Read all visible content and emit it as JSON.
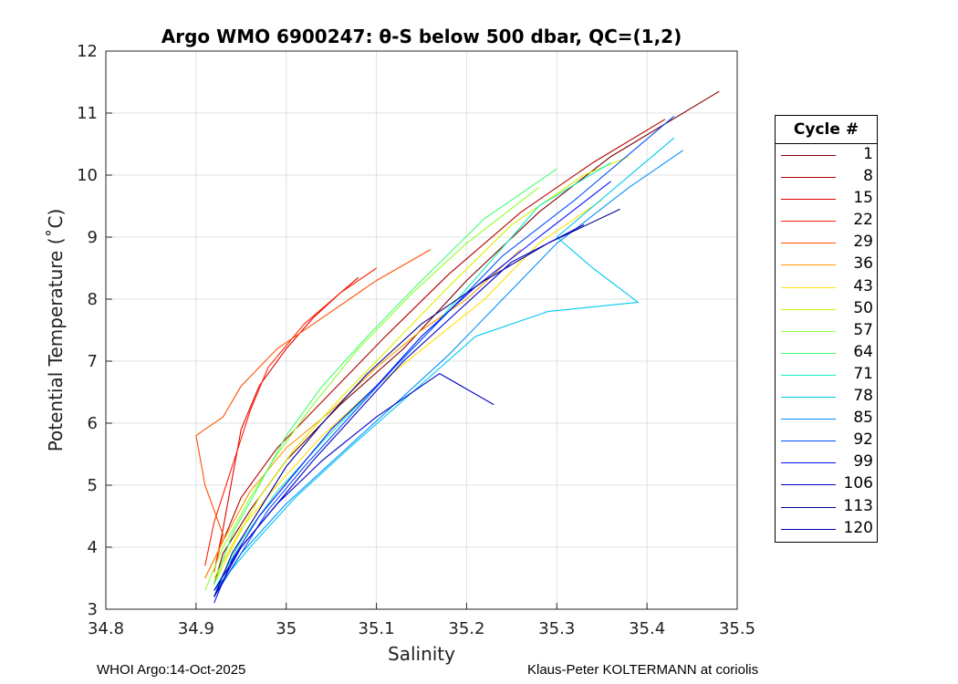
{
  "chart_data": {
    "type": "line",
    "title": "Argo WMO 6900247: θ-S below 500 dbar,  QC=(1,2)",
    "xlabel": "Salinity",
    "ylabel": "Potential Temperature (˚C)",
    "xlim": [
      34.8,
      35.5
    ],
    "ylim": [
      3,
      12
    ],
    "xticks": [
      34.8,
      34.9,
      35.0,
      35.1,
      35.2,
      35.3,
      35.4,
      35.5
    ],
    "xtick_labels": [
      "34.8",
      "34.9",
      "35",
      "35.1",
      "35.2",
      "35.3",
      "35.4",
      "35.5"
    ],
    "yticks": [
      3,
      4,
      5,
      6,
      7,
      8,
      9,
      10,
      11,
      12
    ],
    "ytick_labels": [
      "3",
      "4",
      "5",
      "6",
      "7",
      "8",
      "9",
      "10",
      "11",
      "12"
    ],
    "grid": true,
    "legend_position": "right",
    "legend": {
      "title": "Cycle #",
      "entries": [
        {
          "label": "1",
          "color": "#800000"
        },
        {
          "label": "8",
          "color": "#b50000"
        },
        {
          "label": "15",
          "color": "#e60000"
        },
        {
          "label": "22",
          "color": "#ff2000"
        },
        {
          "label": "29",
          "color": "#ff5000"
        },
        {
          "label": "36",
          "color": "#ff9a00"
        },
        {
          "label": "43",
          "color": "#ffe000"
        },
        {
          "label": "50",
          "color": "#d8f000"
        },
        {
          "label": "57",
          "color": "#90ff30"
        },
        {
          "label": "64",
          "color": "#40ff70"
        },
        {
          "label": "71",
          "color": "#10f0c0"
        },
        {
          "label": "78",
          "color": "#00c8f0"
        },
        {
          "label": "85",
          "color": "#0090ff"
        },
        {
          "label": "92",
          "color": "#0050ff"
        },
        {
          "label": "99",
          "color": "#0010ff"
        },
        {
          "label": "106",
          "color": "#0000c8"
        },
        {
          "label": "113",
          "color": "#00008f"
        },
        {
          "label": "120",
          "color": "#0000c0"
        }
      ]
    },
    "series": [
      {
        "name": "1",
        "color": "#800000",
        "points": [
          [
            34.92,
            3.4
          ],
          [
            34.93,
            3.9
          ],
          [
            34.96,
            4.6
          ],
          [
            35.0,
            5.4
          ],
          [
            35.06,
            6.3
          ],
          [
            35.13,
            7.2
          ],
          [
            35.2,
            8.3
          ],
          [
            35.28,
            9.4
          ],
          [
            35.36,
            10.3
          ],
          [
            35.48,
            11.35
          ]
        ]
      },
      {
        "name": "8",
        "color": "#b50000",
        "points": [
          [
            34.91,
            3.5
          ],
          [
            34.93,
            4.1
          ],
          [
            34.95,
            4.8
          ],
          [
            34.99,
            5.6
          ],
          [
            35.05,
            6.5
          ],
          [
            35.11,
            7.4
          ],
          [
            35.18,
            8.4
          ],
          [
            35.26,
            9.4
          ],
          [
            35.34,
            10.2
          ],
          [
            35.42,
            10.9
          ]
        ]
      },
      {
        "name": "15",
        "color": "#e60000",
        "points": [
          [
            34.92,
            3.6
          ],
          [
            34.93,
            4.3
          ],
          [
            34.94,
            5.1
          ],
          [
            34.95,
            5.9
          ],
          [
            34.97,
            6.6
          ],
          [
            35.0,
            7.2
          ],
          [
            35.03,
            7.7
          ],
          [
            35.06,
            8.1
          ],
          [
            35.08,
            8.35
          ]
        ]
      },
      {
        "name": "22",
        "color": "#ff2000",
        "points": [
          [
            34.91,
            3.7
          ],
          [
            34.92,
            4.4
          ],
          [
            34.94,
            5.3
          ],
          [
            34.96,
            6.2
          ],
          [
            34.98,
            6.9
          ],
          [
            35.02,
            7.6
          ],
          [
            35.06,
            8.1
          ],
          [
            35.1,
            8.5
          ]
        ]
      },
      {
        "name": "29",
        "color": "#ff5000",
        "points": [
          [
            34.92,
            3.6
          ],
          [
            34.93,
            4.2
          ],
          [
            34.91,
            5.0
          ],
          [
            34.9,
            5.8
          ],
          [
            34.93,
            6.1
          ],
          [
            34.95,
            6.6
          ],
          [
            34.99,
            7.2
          ],
          [
            35.04,
            7.7
          ],
          [
            35.1,
            8.3
          ],
          [
            35.16,
            8.8
          ]
        ]
      },
      {
        "name": "36",
        "color": "#ff9a00",
        "points": [
          [
            34.91,
            3.5
          ],
          [
            34.93,
            4.1
          ],
          [
            34.96,
            4.9
          ],
          [
            35.0,
            5.6
          ],
          [
            35.05,
            6.2
          ],
          [
            35.1,
            6.9
          ],
          [
            35.15,
            7.5
          ],
          [
            35.2,
            8.0
          ],
          [
            35.26,
            8.8
          ]
        ]
      },
      {
        "name": "43",
        "color": "#ffe000",
        "points": [
          [
            34.92,
            3.5
          ],
          [
            34.95,
            4.3
          ],
          [
            34.99,
            5.0
          ],
          [
            35.04,
            5.8
          ],
          [
            35.1,
            6.6
          ],
          [
            35.16,
            7.3
          ],
          [
            35.22,
            8.0
          ],
          [
            35.28,
            8.9
          ],
          [
            35.35,
            9.6
          ]
        ]
      },
      {
        "name": "50",
        "color": "#d8f000",
        "points": [
          [
            34.92,
            3.4
          ],
          [
            34.94,
            4.0
          ],
          [
            34.97,
            4.8
          ],
          [
            35.01,
            5.6
          ],
          [
            35.06,
            6.4
          ],
          [
            35.12,
            7.3
          ],
          [
            35.18,
            8.2
          ],
          [
            35.25,
            9.2
          ],
          [
            35.33,
            10.0
          ],
          [
            35.38,
            10.3
          ]
        ]
      },
      {
        "name": "57",
        "color": "#90ff30",
        "points": [
          [
            34.91,
            3.3
          ],
          [
            34.93,
            4.0
          ],
          [
            34.96,
            4.8
          ],
          [
            34.99,
            5.5
          ],
          [
            35.03,
            6.3
          ],
          [
            35.08,
            7.2
          ],
          [
            35.14,
            8.1
          ],
          [
            35.2,
            8.9
          ],
          [
            35.28,
            9.8
          ]
        ]
      },
      {
        "name": "64",
        "color": "#40ff70",
        "points": [
          [
            34.92,
            3.4
          ],
          [
            34.94,
            4.2
          ],
          [
            34.97,
            5.0
          ],
          [
            35.0,
            5.8
          ],
          [
            35.04,
            6.6
          ],
          [
            35.09,
            7.4
          ],
          [
            35.15,
            8.3
          ],
          [
            35.22,
            9.3
          ],
          [
            35.3,
            10.1
          ]
        ]
      },
      {
        "name": "71",
        "color": "#10f0c0",
        "points": [
          [
            34.92,
            3.3
          ],
          [
            34.95,
            4.1
          ],
          [
            34.99,
            4.9
          ],
          [
            35.04,
            5.7
          ],
          [
            35.1,
            6.6
          ],
          [
            35.16,
            7.5
          ],
          [
            35.22,
            8.5
          ],
          [
            35.28,
            9.5
          ],
          [
            35.36,
            10.2
          ]
        ]
      },
      {
        "name": "78",
        "color": "#00c8f0",
        "points": [
          [
            34.92,
            3.3
          ],
          [
            34.96,
            4.0
          ],
          [
            35.01,
            4.8
          ],
          [
            35.07,
            5.6
          ],
          [
            35.14,
            6.5
          ],
          [
            35.21,
            7.4
          ],
          [
            35.29,
            7.8
          ],
          [
            35.39,
            7.95
          ],
          [
            35.34,
            8.5
          ],
          [
            35.3,
            9.0
          ],
          [
            35.43,
            10.6
          ]
        ]
      },
      {
        "name": "85",
        "color": "#0090ff",
        "points": [
          [
            34.92,
            3.2
          ],
          [
            34.95,
            3.9
          ],
          [
            35.0,
            4.7
          ],
          [
            35.06,
            5.5
          ],
          [
            35.12,
            6.3
          ],
          [
            35.18,
            7.1
          ],
          [
            35.24,
            8.0
          ],
          [
            35.3,
            8.9
          ],
          [
            35.38,
            9.8
          ],
          [
            35.44,
            10.4
          ]
        ]
      },
      {
        "name": "92",
        "color": "#0050ff",
        "points": [
          [
            34.92,
            3.2
          ],
          [
            34.95,
            3.9
          ],
          [
            34.98,
            4.6
          ],
          [
            35.02,
            5.3
          ],
          [
            35.07,
            6.1
          ],
          [
            35.12,
            6.9
          ],
          [
            35.18,
            7.8
          ],
          [
            35.24,
            8.7
          ],
          [
            35.32,
            9.6
          ],
          [
            35.43,
            10.95
          ]
        ]
      },
      {
        "name": "99",
        "color": "#0010ff",
        "points": [
          [
            34.92,
            3.1
          ],
          [
            34.94,
            3.8
          ],
          [
            34.97,
            4.5
          ],
          [
            35.01,
            5.2
          ],
          [
            35.05,
            5.9
          ],
          [
            35.1,
            6.6
          ],
          [
            35.15,
            7.4
          ],
          [
            35.21,
            8.2
          ],
          [
            35.28,
            9.0
          ],
          [
            35.36,
            9.9
          ]
        ]
      },
      {
        "name": "106",
        "color": "#0000c8",
        "points": [
          [
            34.92,
            3.2
          ],
          [
            34.95,
            4.0
          ],
          [
            34.99,
            4.7
          ],
          [
            35.04,
            5.4
          ],
          [
            35.1,
            6.1
          ],
          [
            35.17,
            6.8
          ],
          [
            35.23,
            6.3
          ]
        ]
      },
      {
        "name": "113",
        "color": "#00008f",
        "points": [
          [
            34.92,
            3.2
          ],
          [
            34.94,
            3.9
          ],
          [
            34.97,
            4.6
          ],
          [
            35.0,
            5.3
          ],
          [
            35.04,
            6.0
          ],
          [
            35.09,
            6.8
          ],
          [
            35.15,
            7.6
          ],
          [
            35.22,
            8.3
          ],
          [
            35.29,
            8.9
          ],
          [
            35.37,
            9.45
          ]
        ]
      },
      {
        "name": "120",
        "color": "#0000c0",
        "points": [
          [
            34.92,
            3.3
          ],
          [
            34.95,
            4.0
          ],
          [
            34.99,
            4.7
          ],
          [
            35.03,
            5.4
          ],
          [
            35.08,
            6.2
          ],
          [
            35.13,
            7.0
          ],
          [
            35.19,
            7.8
          ],
          [
            35.25,
            8.6
          ],
          [
            35.33,
            9.2
          ]
        ]
      }
    ]
  },
  "footer": {
    "left": "WHOI Argo:14-Oct-2025",
    "right": "Klaus-Peter KOLTERMANN at coriolis"
  }
}
